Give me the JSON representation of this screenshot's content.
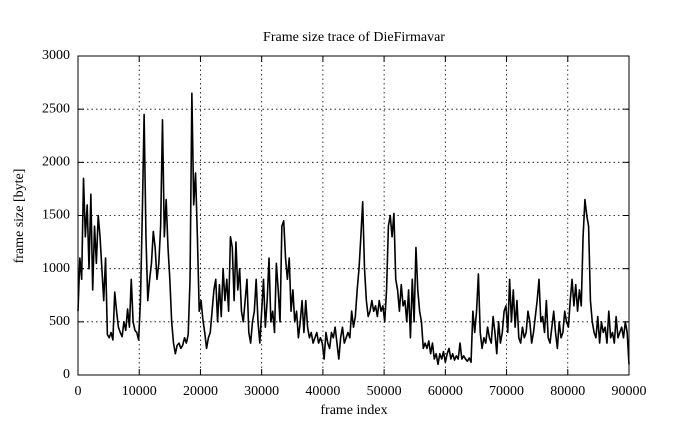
{
  "chart_data": {
    "type": "line",
    "title": "Frame size trace of DieFirmavar",
    "xlabel": "frame index",
    "ylabel": "frame size [byte]",
    "xlim": [
      0,
      90000
    ],
    "ylim": [
      0,
      3000
    ],
    "xticks": [
      0,
      10000,
      20000,
      30000,
      40000,
      50000,
      60000,
      70000,
      80000,
      90000
    ],
    "yticks": [
      0,
      500,
      1000,
      1500,
      2000,
      2500,
      3000
    ],
    "grid": true,
    "x": [
      0,
      300,
      600,
      900,
      1200,
      1500,
      1800,
      2100,
      2400,
      2700,
      3000,
      3300,
      3600,
      3900,
      4200,
      4500,
      4800,
      5100,
      5400,
      5700,
      6000,
      6300,
      6600,
      6900,
      7200,
      7500,
      7800,
      8100,
      8400,
      8700,
      9000,
      9300,
      9600,
      9900,
      10200,
      10500,
      10800,
      11100,
      11400,
      11700,
      12000,
      12300,
      12600,
      12900,
      13200,
      13500,
      13800,
      14100,
      14400,
      14700,
      15000,
      15300,
      15600,
      15900,
      16200,
      16500,
      16800,
      17100,
      17400,
      17700,
      18000,
      18300,
      18600,
      18900,
      19200,
      19500,
      19800,
      20100,
      20400,
      20700,
      21000,
      21300,
      21600,
      21900,
      22200,
      22500,
      22800,
      23100,
      23400,
      23700,
      24000,
      24300,
      24600,
      24900,
      25200,
      25500,
      25800,
      26100,
      26400,
      26700,
      27000,
      27300,
      27600,
      27900,
      28200,
      28500,
      28800,
      29100,
      29400,
      29700,
      30000,
      30300,
      30600,
      30900,
      31200,
      31500,
      31800,
      32100,
      32400,
      32700,
      33000,
      33300,
      33600,
      33900,
      34200,
      34500,
      34800,
      35100,
      35400,
      35700,
      36000,
      36300,
      36600,
      36900,
      37200,
      37500,
      37800,
      38100,
      38400,
      38700,
      39000,
      39300,
      39600,
      39900,
      40200,
      40500,
      40800,
      41100,
      41400,
      41700,
      42000,
      42300,
      42600,
      42900,
      43200,
      43500,
      43800,
      44100,
      44400,
      44700,
      45000,
      45300,
      45600,
      45900,
      46200,
      46500,
      46800,
      47100,
      47400,
      47700,
      48000,
      48300,
      48600,
      48900,
      49200,
      49500,
      49800,
      50100,
      50400,
      50700,
      51000,
      51300,
      51600,
      51900,
      52200,
      52500,
      52800,
      53100,
      53400,
      53700,
      54000,
      54300,
      54600,
      54900,
      55200,
      55500,
      55800,
      56100,
      56400,
      56700,
      57000,
      57300,
      57600,
      57900,
      58200,
      58500,
      58800,
      59100,
      59400,
      59700,
      60000,
      60300,
      60600,
      60900,
      61200,
      61500,
      61800,
      62100,
      62400,
      62700,
      63000,
      63300,
      63600,
      63900,
      64200,
      64500,
      64800,
      65100,
      65400,
      65700,
      66000,
      66300,
      66600,
      66900,
      67200,
      67500,
      67800,
      68100,
      68400,
      68700,
      69000,
      69300,
      69600,
      69900,
      70200,
      70500,
      70800,
      71100,
      71400,
      71700,
      72000,
      72300,
      72600,
      72900,
      73200,
      73500,
      73800,
      74100,
      74400,
      74700,
      75000,
      75300,
      75600,
      75900,
      76200,
      76500,
      76800,
      77100,
      77400,
      77700,
      78000,
      78300,
      78600,
      78900,
      79200,
      79500,
      79800,
      80100,
      80400,
      80700,
      81000,
      81300,
      81600,
      81900,
      82200,
      82500,
      82800,
      83100,
      83400,
      83700,
      84000,
      84300,
      84600,
      84900,
      85200,
      85500,
      85800,
      86100,
      86400,
      86700,
      87000,
      87300,
      87600,
      87900,
      88200,
      88500,
      88800,
      89100,
      89400,
      89700,
      90000
    ],
    "series": [
      {
        "color": "#000000",
        "values": [
          600,
          1100,
          900,
          1850,
          1300,
          1600,
          1000,
          1700,
          800,
          1400,
          1050,
          1500,
          1300,
          1000,
          700,
          1100,
          380,
          350,
          400,
          330,
          780,
          600,
          450,
          400,
          360,
          500,
          420,
          620,
          450,
          900,
          500,
          420,
          400,
          330,
          700,
          1500,
          2450,
          1300,
          700,
          900,
          1050,
          1350,
          1200,
          900,
          1050,
          1400,
          2400,
          1300,
          1650,
          1200,
          900,
          500,
          300,
          200,
          280,
          300,
          250,
          280,
          350,
          300,
          380,
          900,
          2650,
          1600,
          1900,
          1300,
          600,
          700,
          520,
          400,
          250,
          350,
          400,
          600,
          800,
          900,
          500,
          850,
          550,
          1000,
          700,
          900,
          600,
          1300,
          1200,
          700,
          1250,
          800,
          1000,
          600,
          500,
          700,
          900,
          400,
          300,
          500,
          600,
          900,
          500,
          300,
          600,
          900,
          450,
          700,
          1100,
          500,
          600,
          400,
          1050,
          800,
          500,
          1400,
          1450,
          1100,
          900,
          1100,
          600,
          800,
          500,
          600,
          350,
          500,
          700,
          400,
          700,
          450,
          350,
          400,
          300,
          350,
          400,
          300,
          350,
          300,
          150,
          400,
          300,
          250,
          400,
          350,
          450,
          300,
          150,
          350,
          450,
          300,
          350,
          400,
          350,
          600,
          450,
          550,
          800,
          1000,
          1300,
          1630,
          1000,
          700,
          550,
          600,
          700,
          600,
          650,
          550,
          700,
          600,
          650,
          500,
          800,
          1400,
          1500,
          1300,
          1520,
          900,
          800,
          600,
          850,
          650,
          700,
          500,
          800,
          350,
          900,
          500,
          1200,
          800,
          600,
          500,
          250,
          300,
          250,
          320,
          200,
          300,
          150,
          200,
          100,
          200,
          150,
          220,
          120,
          200,
          250,
          150,
          200,
          140,
          180,
          150,
          300,
          150,
          180,
          150,
          130,
          160,
          120,
          600,
          400,
          600,
          950,
          400,
          250,
          350,
          300,
          450,
          350,
          300,
          550,
          400,
          200,
          500,
          300,
          400,
          600,
          650,
          400,
          900,
          500,
          800,
          450,
          700,
          350,
          300,
          450,
          350,
          400,
          600,
          500,
          300,
          400,
          550,
          700,
          900,
          500,
          550,
          400,
          700,
          350,
          300,
          450,
          600,
          400,
          250,
          500,
          350,
          400,
          600,
          500,
          450,
          700,
          900,
          650,
          850,
          600,
          800,
          650,
          1300,
          1650,
          1500,
          1400,
          700,
          500,
          400,
          350,
          550,
          300,
          500,
          400,
          450,
          300,
          600,
          350,
          400,
          300,
          550,
          350,
          400,
          450,
          350,
          500,
          400,
          100
        ]
      }
    ]
  }
}
